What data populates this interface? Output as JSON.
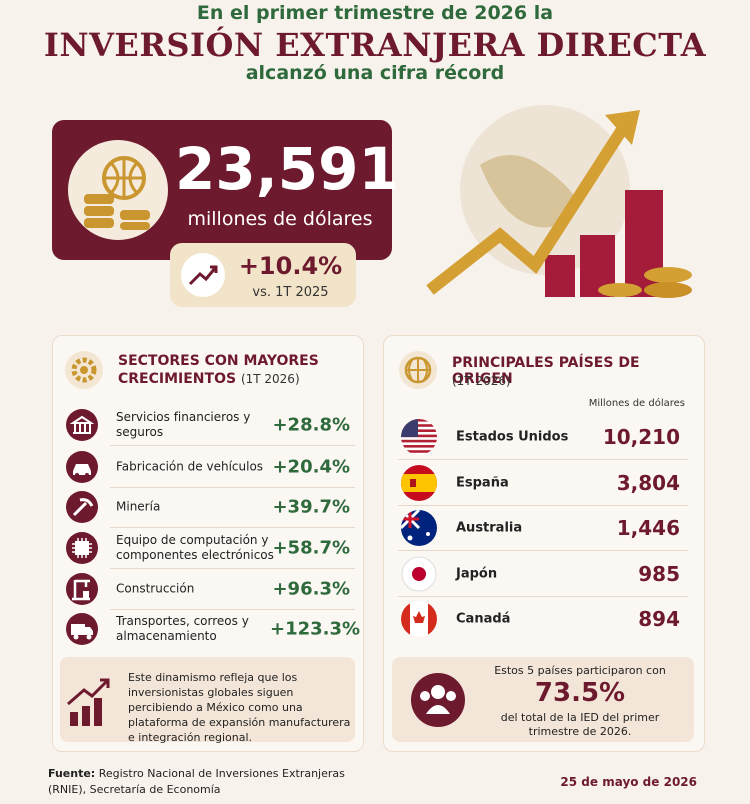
{
  "header": {
    "line1": "En el primer trimestre de 2026 la",
    "title": "INVERSIÓN EXTRANJERA DIRECTA",
    "line3": "alcanzó una cifra récord"
  },
  "highlight": {
    "value": "23,591",
    "unit": "millones de dólares",
    "change": "+10.4%",
    "change_note": "vs. 1T 2025"
  },
  "sectors": {
    "title": "SECTORES CON MAYORES CRECIMIENTOS",
    "period": "(1T 2026)",
    "rows": [
      {
        "label": "Servicios financieros y seguros",
        "value": "+28.8%"
      },
      {
        "label": "Fabricación de vehículos",
        "value": "+20.4%"
      },
      {
        "label": "Minería",
        "value": "+39.7%"
      },
      {
        "label": "Equipo de computación y componentes electrónicos",
        "value": "+58.7%"
      },
      {
        "label": "Construcción",
        "value": "+96.3%"
      },
      {
        "label": "Transportes, correos y almacenamiento",
        "value": "+123.3%"
      }
    ],
    "note": "Este dinamismo refleja que los inversionistas globales siguen percibiendo a México como una plataforma de expansión manufacturera e integración regional."
  },
  "countries": {
    "title": "PRINCIPALES PAÍSES DE ORIGEN",
    "period": "(1T 2026)",
    "unit_label": "Millones de dólares",
    "rows": [
      {
        "name": "Estados Unidos",
        "value": "10,210"
      },
      {
        "name": "España",
        "value": "3,804"
      },
      {
        "name": "Australia",
        "value": "1,446"
      },
      {
        "name": "Japón",
        "value": "985"
      },
      {
        "name": "Canadá",
        "value": "894"
      }
    ],
    "summary": {
      "pre": "Estos 5 países participaron con",
      "value": "73.5%",
      "post": "del total de la IED del primer trimestre de 2026."
    }
  },
  "footer": {
    "source_label": "Fuente:",
    "source": "Registro Nacional de Inversiones Extranjeras (RNIE), Secretaría de Economía",
    "date": "25 de mayo de 2026"
  }
}
